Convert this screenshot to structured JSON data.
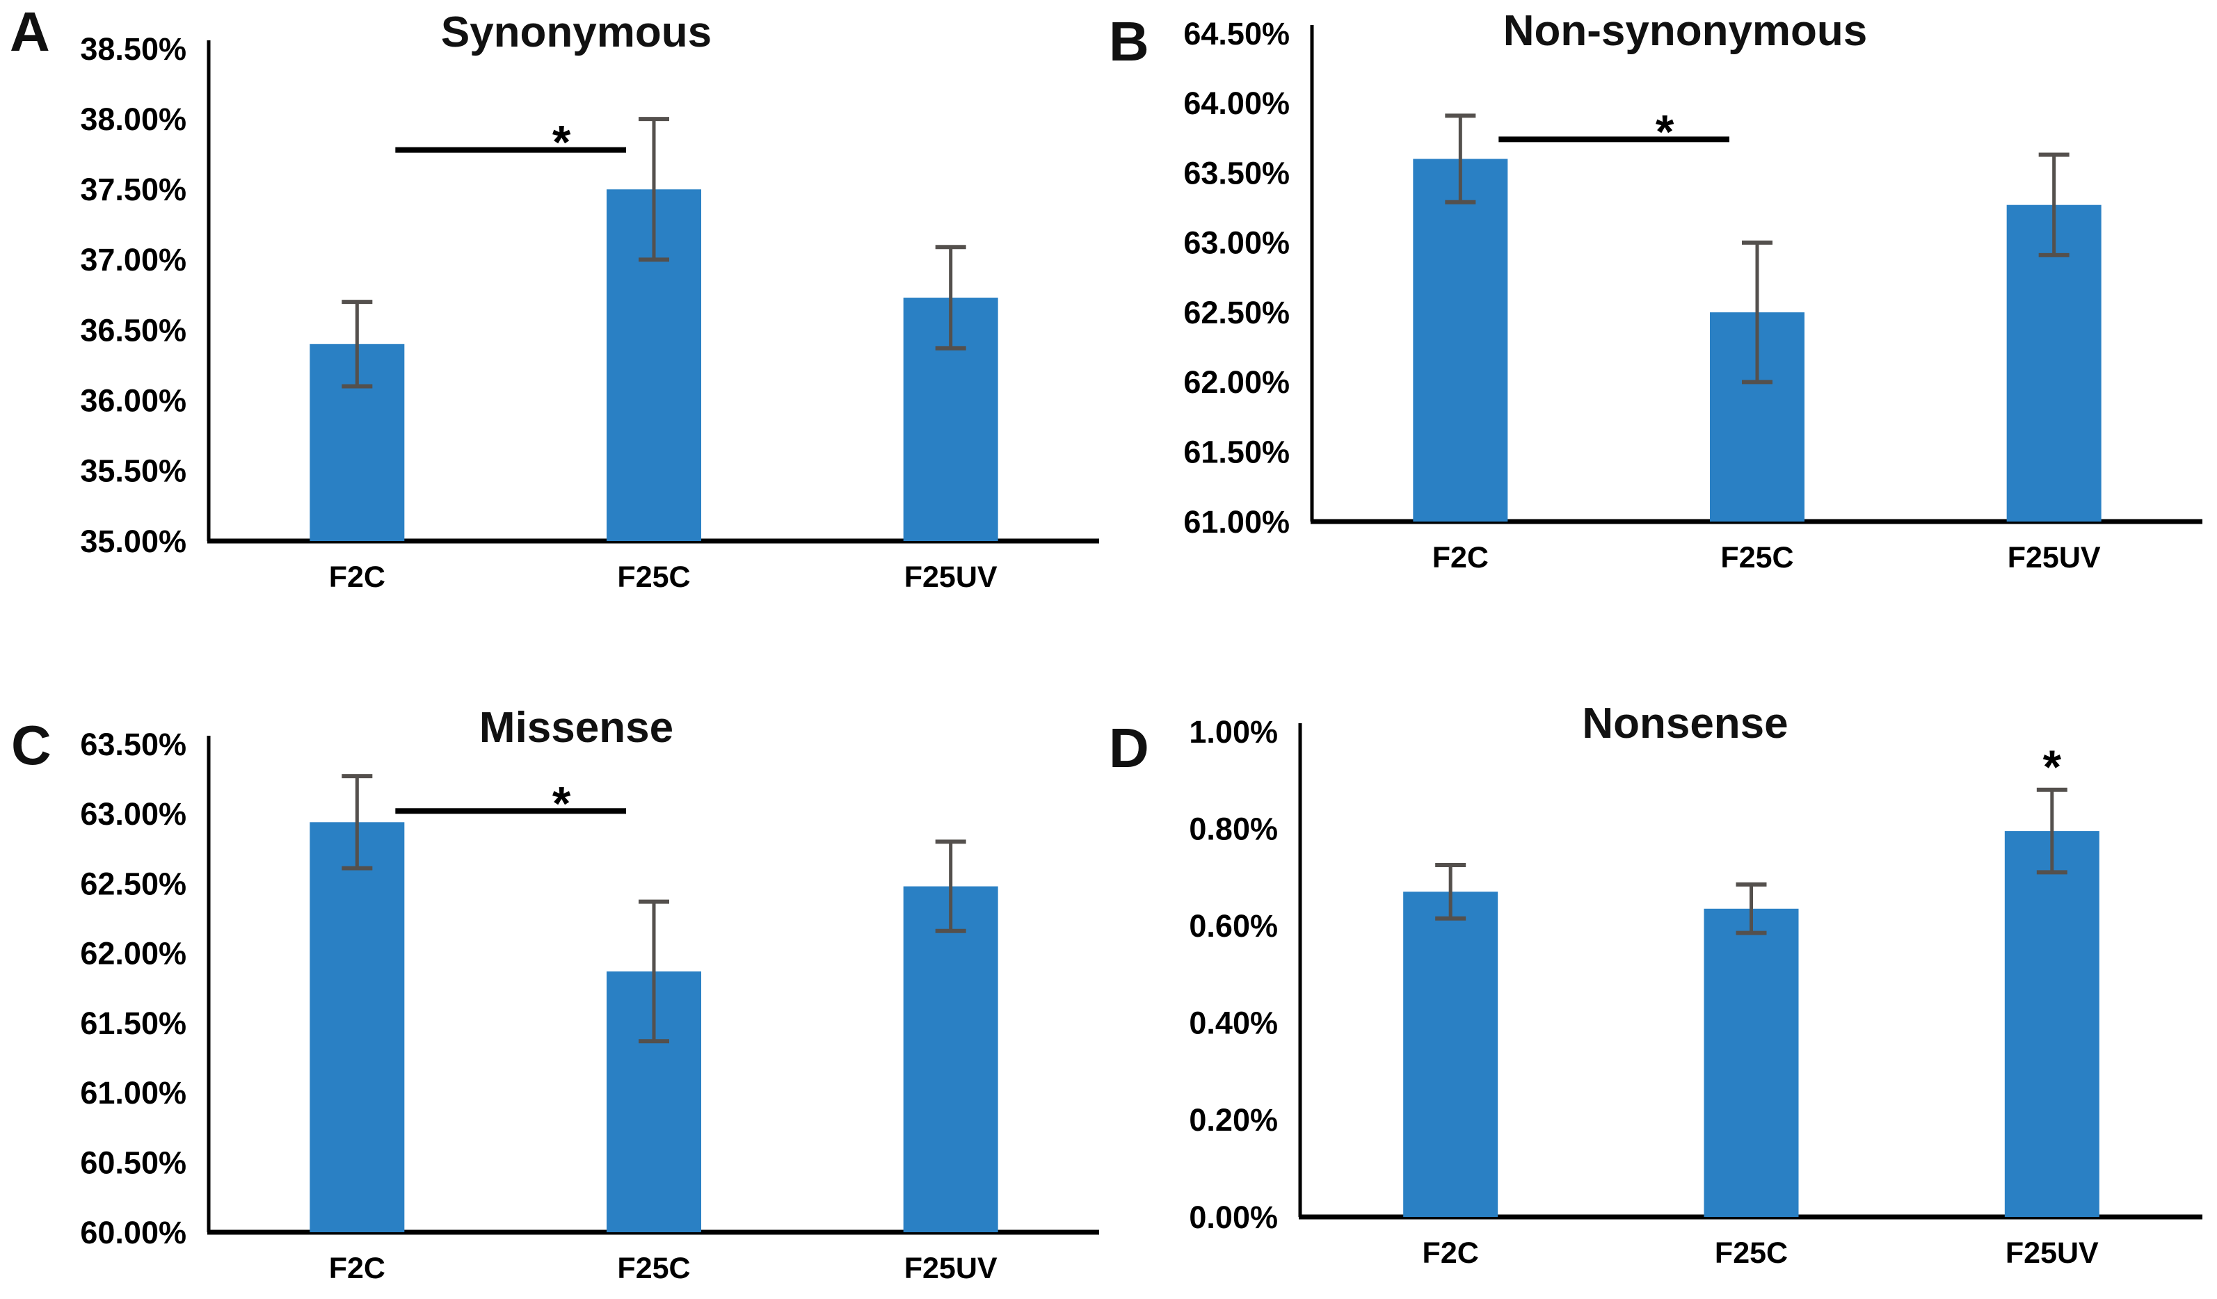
{
  "figure": {
    "background": "#ffffff",
    "bar_color": "#2A80C4",
    "error_bar_color": "#54504D",
    "axis_color": "#000000",
    "significance_color": "#000000"
  },
  "chart_data": [
    {
      "panel_label": "A",
      "type": "bar",
      "title": "Synonymous",
      "categories": [
        "F2C",
        "F25C",
        "F25UV"
      ],
      "values": [
        36.4,
        37.5,
        36.73
      ],
      "errors": [
        0.3,
        0.5,
        0.36
      ],
      "unit": "%",
      "ylim": [
        35.0,
        38.5
      ],
      "ytick_step": 0.5,
      "ytick_labels": [
        "38.50%",
        "38.00%",
        "37.50%",
        "37.00%",
        "36.50%",
        "36.00%",
        "35.50%",
        "35.00%"
      ],
      "grid": false,
      "legend": null,
      "significance": {
        "style": "bracket",
        "between": [
          0,
          1
        ],
        "label": "*",
        "y_value": 37.78
      }
    },
    {
      "panel_label": "B",
      "type": "bar",
      "title": "Non-synonymous",
      "categories": [
        "F2C",
        "F25C",
        "F25UV"
      ],
      "values": [
        63.6,
        62.5,
        63.27
      ],
      "errors": [
        0.31,
        0.5,
        0.36
      ],
      "unit": "%",
      "ylim": [
        61.0,
        64.5
      ],
      "ytick_step": 0.5,
      "ytick_labels": [
        "64.50%",
        "64.00%",
        "63.50%",
        "63.00%",
        "62.50%",
        "62.00%",
        "61.50%",
        "61.00%"
      ],
      "grid": false,
      "legend": null,
      "significance": {
        "style": "bracket",
        "between": [
          0,
          1
        ],
        "label": "*",
        "y_value": 63.74
      }
    },
    {
      "panel_label": "C",
      "type": "bar",
      "title": "Missense",
      "categories": [
        "F2C",
        "F25C",
        "F25UV"
      ],
      "values": [
        62.94,
        61.87,
        62.48
      ],
      "errors": [
        0.33,
        0.5,
        0.32
      ],
      "unit": "%",
      "ylim": [
        60.0,
        63.5
      ],
      "ytick_step": 0.5,
      "ytick_labels": [
        "63.50%",
        "63.00%",
        "62.50%",
        "62.00%",
        "61.50%",
        "61.00%",
        "60.50%",
        "60.00%"
      ],
      "grid": false,
      "legend": null,
      "significance": {
        "style": "bracket",
        "between": [
          0,
          1
        ],
        "label": "*",
        "y_value": 63.02
      }
    },
    {
      "panel_label": "D",
      "type": "bar",
      "title": "Nonsense",
      "categories": [
        "F2C",
        "F25C",
        "F25UV"
      ],
      "values": [
        0.67,
        0.635,
        0.795
      ],
      "errors": [
        0.055,
        0.05,
        0.085
      ],
      "unit": "%",
      "ylim": [
        0.0,
        1.0
      ],
      "ytick_step": 0.2,
      "ytick_labels": [
        "1.00%",
        "0.80%",
        "0.60%",
        "0.40%",
        "0.20%",
        "0.00%"
      ],
      "grid": false,
      "legend": null,
      "significance": {
        "style": "star",
        "bar": 2,
        "label": "*"
      }
    }
  ]
}
